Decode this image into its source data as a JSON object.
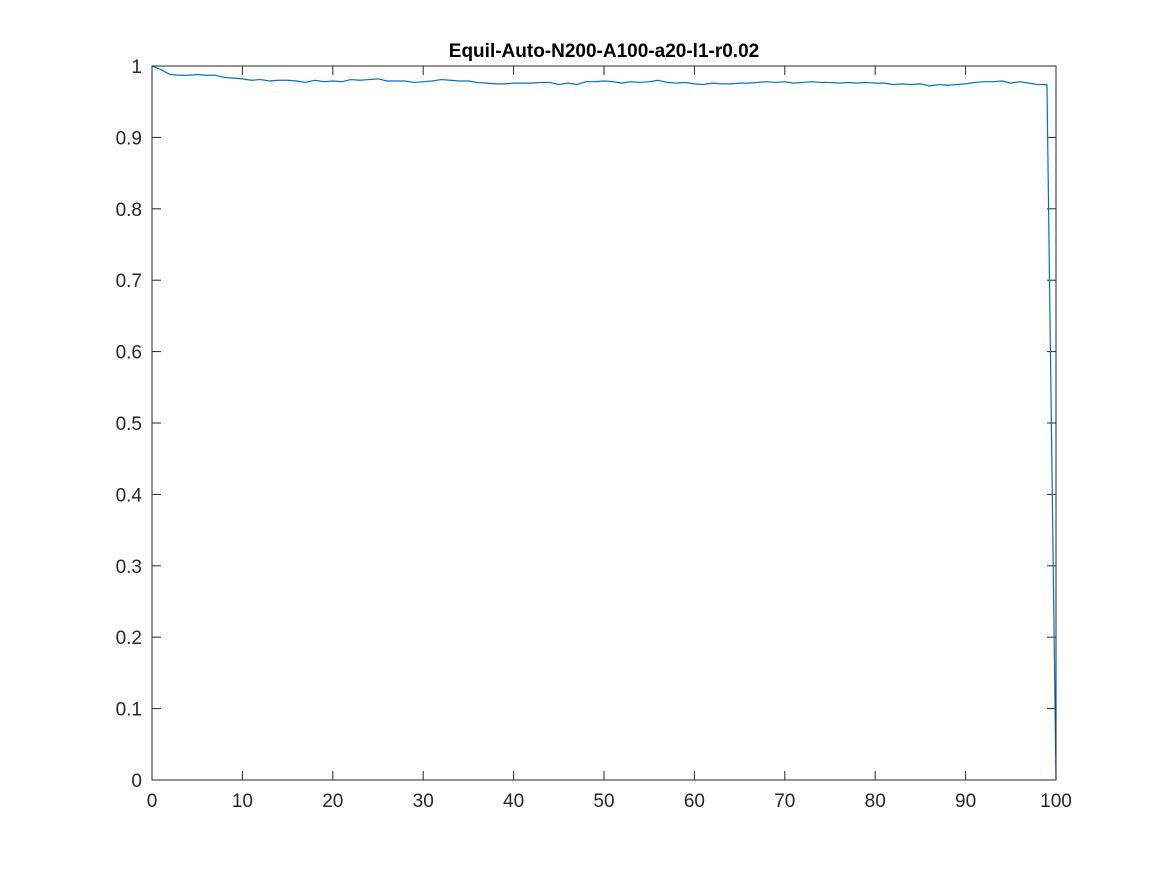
{
  "chart_data": {
    "type": "line",
    "title": "Equil-Auto-N200-A100-a20-l1-r0.02",
    "xlabel": "",
    "ylabel": "",
    "xlim": [
      0,
      100
    ],
    "ylim": [
      0,
      1
    ],
    "x_ticks": [
      "0",
      "10",
      "20",
      "30",
      "40",
      "50",
      "60",
      "70",
      "80",
      "90",
      "100"
    ],
    "y_ticks": [
      "0",
      "0.1",
      "0.2",
      "0.3",
      "0.4",
      "0.5",
      "0.6",
      "0.7",
      "0.8",
      "0.9",
      "1"
    ],
    "grid": false,
    "legend": "none",
    "series": [
      {
        "color": "#0072BD",
        "x": [
          0,
          1,
          2,
          3,
          4,
          5,
          6,
          7,
          8,
          9,
          10,
          11,
          12,
          13,
          14,
          15,
          16,
          17,
          18,
          19,
          20,
          21,
          22,
          23,
          24,
          25,
          26,
          27,
          28,
          29,
          30,
          31,
          32,
          33,
          34,
          35,
          36,
          37,
          38,
          39,
          40,
          41,
          42,
          43,
          44,
          45,
          46,
          47,
          48,
          49,
          50,
          51,
          52,
          53,
          54,
          55,
          56,
          57,
          58,
          59,
          60,
          61,
          62,
          63,
          64,
          65,
          66,
          67,
          68,
          69,
          70,
          71,
          72,
          73,
          74,
          75,
          76,
          77,
          78,
          79,
          80,
          81,
          82,
          83,
          84,
          85,
          86,
          87,
          88,
          89,
          90,
          91,
          92,
          93,
          94,
          95,
          96,
          97,
          98,
          99,
          100
        ],
        "y": [
          1.0,
          0.995,
          0.988,
          0.987,
          0.987,
          0.988,
          0.987,
          0.987,
          0.984,
          0.983,
          0.982,
          0.98,
          0.981,
          0.979,
          0.98,
          0.98,
          0.979,
          0.977,
          0.98,
          0.978,
          0.979,
          0.978,
          0.981,
          0.98,
          0.981,
          0.982,
          0.979,
          0.979,
          0.979,
          0.977,
          0.978,
          0.979,
          0.981,
          0.98,
          0.979,
          0.979,
          0.977,
          0.976,
          0.975,
          0.975,
          0.976,
          0.976,
          0.976,
          0.977,
          0.977,
          0.974,
          0.976,
          0.974,
          0.978,
          0.978,
          0.979,
          0.978,
          0.976,
          0.978,
          0.977,
          0.978,
          0.98,
          0.977,
          0.976,
          0.977,
          0.975,
          0.974,
          0.976,
          0.975,
          0.975,
          0.976,
          0.976,
          0.977,
          0.978,
          0.977,
          0.978,
          0.976,
          0.977,
          0.978,
          0.977,
          0.977,
          0.976,
          0.977,
          0.976,
          0.977,
          0.976,
          0.976,
          0.974,
          0.975,
          0.974,
          0.975,
          0.972,
          0.974,
          0.973,
          0.974,
          0.975,
          0.977,
          0.978,
          0.978,
          0.979,
          0.976,
          0.978,
          0.976,
          0.974,
          0.974,
          0.0
        ]
      }
    ]
  }
}
